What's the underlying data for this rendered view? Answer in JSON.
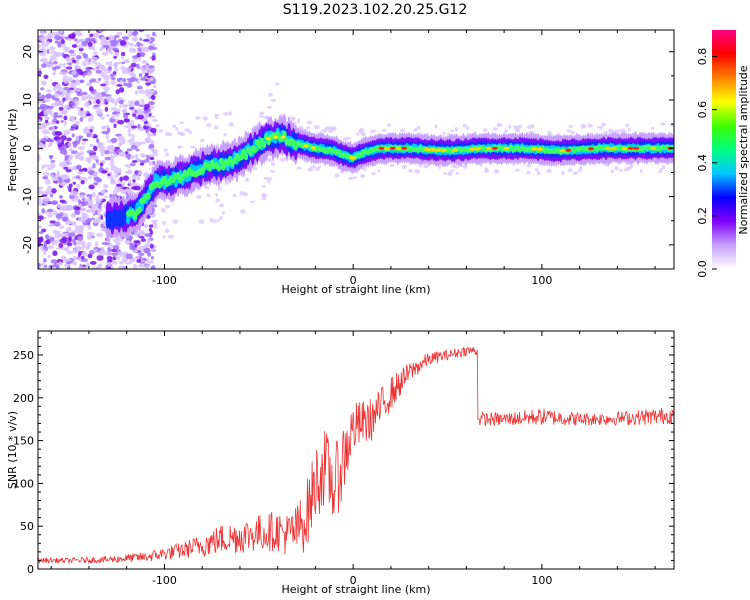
{
  "title": "S119.2023.102.20.25.G12",
  "chart_data": [
    {
      "type": "heatmap",
      "name": "spectrogram",
      "xlabel": "Height of straight line (km)",
      "ylabel": "Frequency (Hz)",
      "xlim": [
        -167,
        170
      ],
      "ylim": [
        -25,
        24.5
      ],
      "x_ticks": [
        -100,
        0,
        100
      ],
      "y_ticks": [
        -20,
        -10,
        0,
        10,
        20
      ],
      "ridge": {
        "x": [
          -125,
          -115,
          -105,
          -95,
          -85,
          -75,
          -65,
          -55,
          -45,
          -38,
          -30,
          -20,
          -10,
          -5,
          0,
          5,
          15,
          30,
          50,
          70,
          90,
          110,
          130,
          150,
          170
        ],
        "freq": [
          -14.5,
          -13.5,
          -7,
          -6.5,
          -5,
          -3.5,
          -3,
          -0.5,
          2,
          2.5,
          1,
          0,
          -0.5,
          -1.5,
          -2,
          -1,
          0,
          0,
          -0.5,
          0,
          0,
          -0.5,
          0,
          0,
          0
        ]
      },
      "colorbar": {
        "label": "Normalized spectral amplitude",
        "range": [
          0,
          0.9
        ],
        "ticks": [
          "0.0",
          "0.2",
          "0.4",
          "0.6",
          "0.8"
        ],
        "colors": [
          "#ffffff",
          "#c8a0ff",
          "#8000ff",
          "#0000ff",
          "#00c8ff",
          "#00ff80",
          "#40ff00",
          "#ffff00",
          "#ff8000",
          "#ff0000",
          "#ff0080"
        ]
      },
      "grid": false
    },
    {
      "type": "line",
      "name": "snr",
      "xlabel": "Height of straight line (km)",
      "ylabel": "SNR (10 * v/v)",
      "xlim": [
        -167,
        170
      ],
      "ylim": [
        0,
        278
      ],
      "x_ticks": [
        -100,
        0,
        100
      ],
      "y_ticks": [
        0,
        50,
        100,
        150,
        200,
        250
      ],
      "color": "#ee3333",
      "series": [
        {
          "x": [
            -167,
            -150,
            -130,
            -110,
            -100,
            -90,
            -80,
            -70,
            -60,
            -50,
            -40,
            -35,
            -30,
            -25,
            -20,
            -15,
            -10,
            -5,
            0,
            10,
            20,
            30,
            40,
            50,
            60,
            66,
            67,
            80,
            100,
            120,
            140,
            160,
            170
          ],
          "mean": [
            10,
            10,
            11,
            14,
            18,
            22,
            28,
            35,
            38,
            42,
            45,
            40,
            45,
            60,
            100,
            120,
            95,
            130,
            165,
            175,
            205,
            230,
            245,
            250,
            255,
            255,
            175,
            175,
            178,
            175,
            176,
            178,
            180
          ],
          "spread": [
            3,
            3,
            4,
            6,
            8,
            10,
            14,
            18,
            20,
            22,
            24,
            26,
            30,
            40,
            45,
            45,
            45,
            45,
            30,
            25,
            20,
            12,
            8,
            6,
            6,
            6,
            8,
            8,
            10,
            8,
            8,
            10,
            10
          ]
        }
      ],
      "grid": false
    }
  ]
}
